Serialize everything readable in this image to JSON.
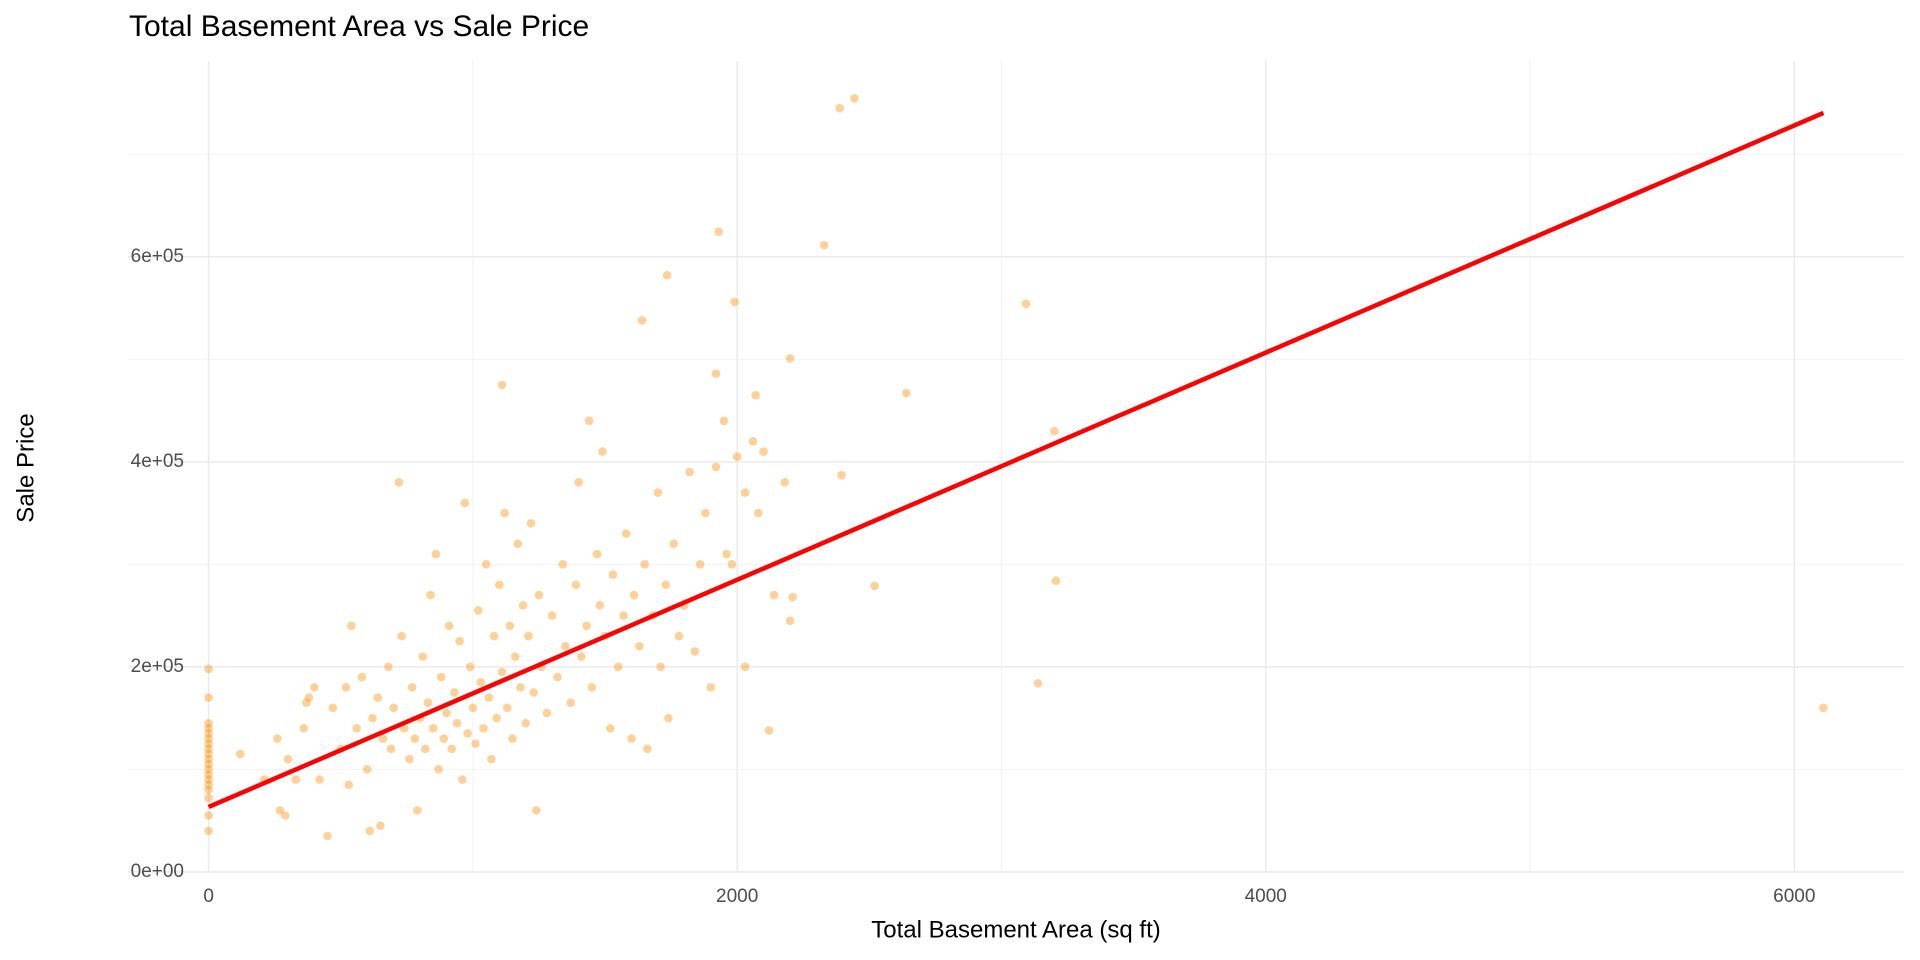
{
  "chart_data": {
    "type": "scatter",
    "title": "Total Basement Area vs Sale Price",
    "x_label": "Total Basement Area (sq ft)",
    "y_label": "Sale Price",
    "xlim": [
      -305,
      6415
    ],
    "ylim": [
      -1100,
      791000
    ],
    "xticks": [
      0,
      2000,
      4000,
      6000
    ],
    "yticks": [
      {
        "value": 0,
        "label": "0e+00"
      },
      {
        "value": 200000,
        "label": "2e+05"
      },
      {
        "value": 400000,
        "label": "4e+05"
      },
      {
        "value": 600000,
        "label": "6e+05"
      }
    ],
    "minor_xticks": [
      1000,
      3000,
      5000
    ],
    "minor_yticks": [
      100000,
      300000,
      500000,
      700000
    ],
    "grid": true,
    "series": [
      {
        "type": "scatter",
        "color": "#ff8c00",
        "opacity": 0.4,
        "x": [
          0,
          0,
          0,
          0,
          0,
          0,
          0,
          0,
          0,
          0,
          0,
          0,
          0,
          0,
          0,
          0,
          0,
          0,
          0,
          120,
          210,
          260,
          270,
          290,
          300,
          330,
          360,
          370,
          380,
          400,
          420,
          450,
          470,
          500,
          520,
          530,
          540,
          560,
          580,
          600,
          610,
          620,
          640,
          650,
          660,
          680,
          690,
          700,
          720,
          730,
          740,
          760,
          770,
          780,
          790,
          800,
          810,
          820,
          830,
          840,
          850,
          860,
          870,
          880,
          890,
          900,
          910,
          920,
          930,
          940,
          950,
          960,
          970,
          980,
          990,
          1000,
          1010,
          1020,
          1030,
          1040,
          1050,
          1060,
          1070,
          1080,
          1090,
          1100,
          1110,
          1120,
          1130,
          1140,
          1150,
          1160,
          1170,
          1180,
          1190,
          1200,
          1210,
          1220,
          1230,
          1240,
          1250,
          1260,
          1280,
          1300,
          1320,
          1340,
          1350,
          1370,
          1390,
          1400,
          1410,
          1430,
          1440,
          1450,
          1470,
          1480,
          1490,
          1500,
          1520,
          1530,
          1550,
          1570,
          1580,
          1600,
          1610,
          1630,
          1650,
          1660,
          1680,
          1700,
          1710,
          1730,
          1740,
          1760,
          1780,
          1800,
          1820,
          1840,
          1860,
          1880,
          1900,
          1920,
          1950,
          1960,
          1980,
          2000,
          2030,
          2060,
          2080,
          2100,
          2140,
          2180,
          2200,
          2210,
          2444,
          2388,
          1930,
          2329,
          1735,
          1990,
          3093,
          1640,
          2200,
          1920,
          2640,
          1110,
          3200,
          2070,
          2395,
          3206,
          2520,
          3138,
          6110,
          2120,
          2030
        ],
        "values": [
          40000,
          55000,
          72000,
          80000,
          85000,
          90000,
          95000,
          100000,
          105000,
          110000,
          115000,
          120000,
          125000,
          130000,
          135000,
          140000,
          145000,
          170000,
          198000,
          115000,
          90000,
          130000,
          60000,
          55000,
          110000,
          90000,
          140000,
          165000,
          170000,
          180000,
          90000,
          35000,
          160000,
          120000,
          180000,
          85000,
          240000,
          140000,
          190000,
          100000,
          40000,
          150000,
          170000,
          45000,
          130000,
          200000,
          120000,
          160000,
          380000,
          230000,
          140000,
          110000,
          180000,
          130000,
          60000,
          150000,
          210000,
          120000,
          165000,
          270000,
          140000,
          310000,
          100000,
          190000,
          130000,
          155000,
          240000,
          120000,
          175000,
          145000,
          225000,
          90000,
          360000,
          135000,
          200000,
          160000,
          125000,
          255000,
          185000,
          140000,
          300000,
          170000,
          110000,
          230000,
          150000,
          280000,
          195000,
          350000,
          160000,
          240000,
          130000,
          210000,
          320000,
          180000,
          260000,
          145000,
          230000,
          340000,
          175000,
          60000,
          270000,
          200000,
          155000,
          250000,
          190000,
          300000,
          220000,
          165000,
          280000,
          380000,
          210000,
          240000,
          440000,
          180000,
          310000,
          260000,
          410000,
          230000,
          140000,
          290000,
          200000,
          250000,
          330000,
          130000,
          270000,
          220000,
          300000,
          120000,
          250000,
          370000,
          200000,
          280000,
          150000,
          320000,
          230000,
          260000,
          390000,
          215000,
          300000,
          350000,
          180000,
          395000,
          440000,
          310000,
          300000,
          405000,
          370000,
          420000,
          350000,
          410000,
          270000,
          380000,
          245000,
          268000,
          754600,
          745000,
          624500,
          611300,
          582000,
          556000,
          554000,
          538000,
          501000,
          486000,
          467000,
          475000,
          430000,
          465000,
          387000,
          284000,
          279000,
          184000,
          160000,
          138000,
          200000
        ]
      },
      {
        "type": "line",
        "color": "#ff0000",
        "x": [
          0,
          6110
        ],
        "values": [
          63300,
          740300
        ]
      }
    ]
  }
}
